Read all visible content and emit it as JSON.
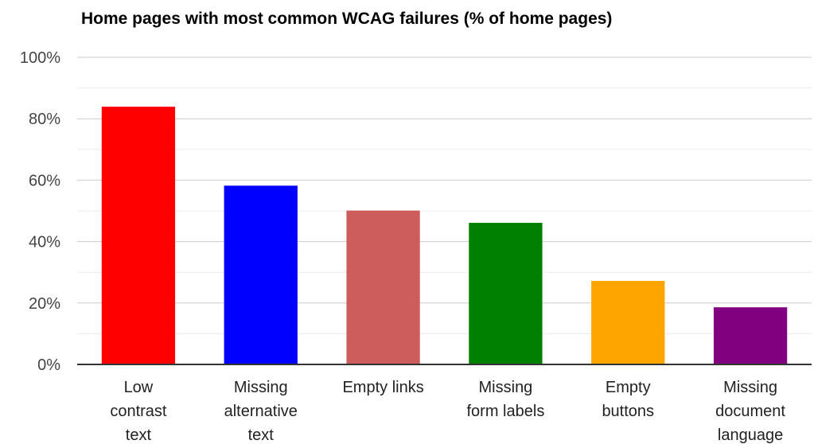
{
  "chart_data": {
    "type": "bar",
    "title": "Home pages with most common WCAG failures (% of home pages)",
    "xlabel": "",
    "ylabel": "",
    "ylim": [
      0,
      100
    ],
    "yticks": [
      "0%",
      "20%",
      "40%",
      "60%",
      "80%",
      "100%"
    ],
    "categories": [
      [
        "Low",
        "contrast",
        "text"
      ],
      [
        "Missing",
        "alternative",
        "text"
      ],
      [
        "Empty links"
      ],
      [
        "Missing",
        "form labels"
      ],
      [
        "Empty",
        "buttons"
      ],
      [
        "Missing",
        "document",
        "language"
      ]
    ],
    "values": [
      83.9,
      58.2,
      50.1,
      46.1,
      27.2,
      18.6
    ],
    "colors": [
      "#ff0000",
      "#0000ff",
      "#cd5c5c",
      "#008000",
      "#ffa500",
      "#800080"
    ],
    "grid": true,
    "legend": "none"
  }
}
